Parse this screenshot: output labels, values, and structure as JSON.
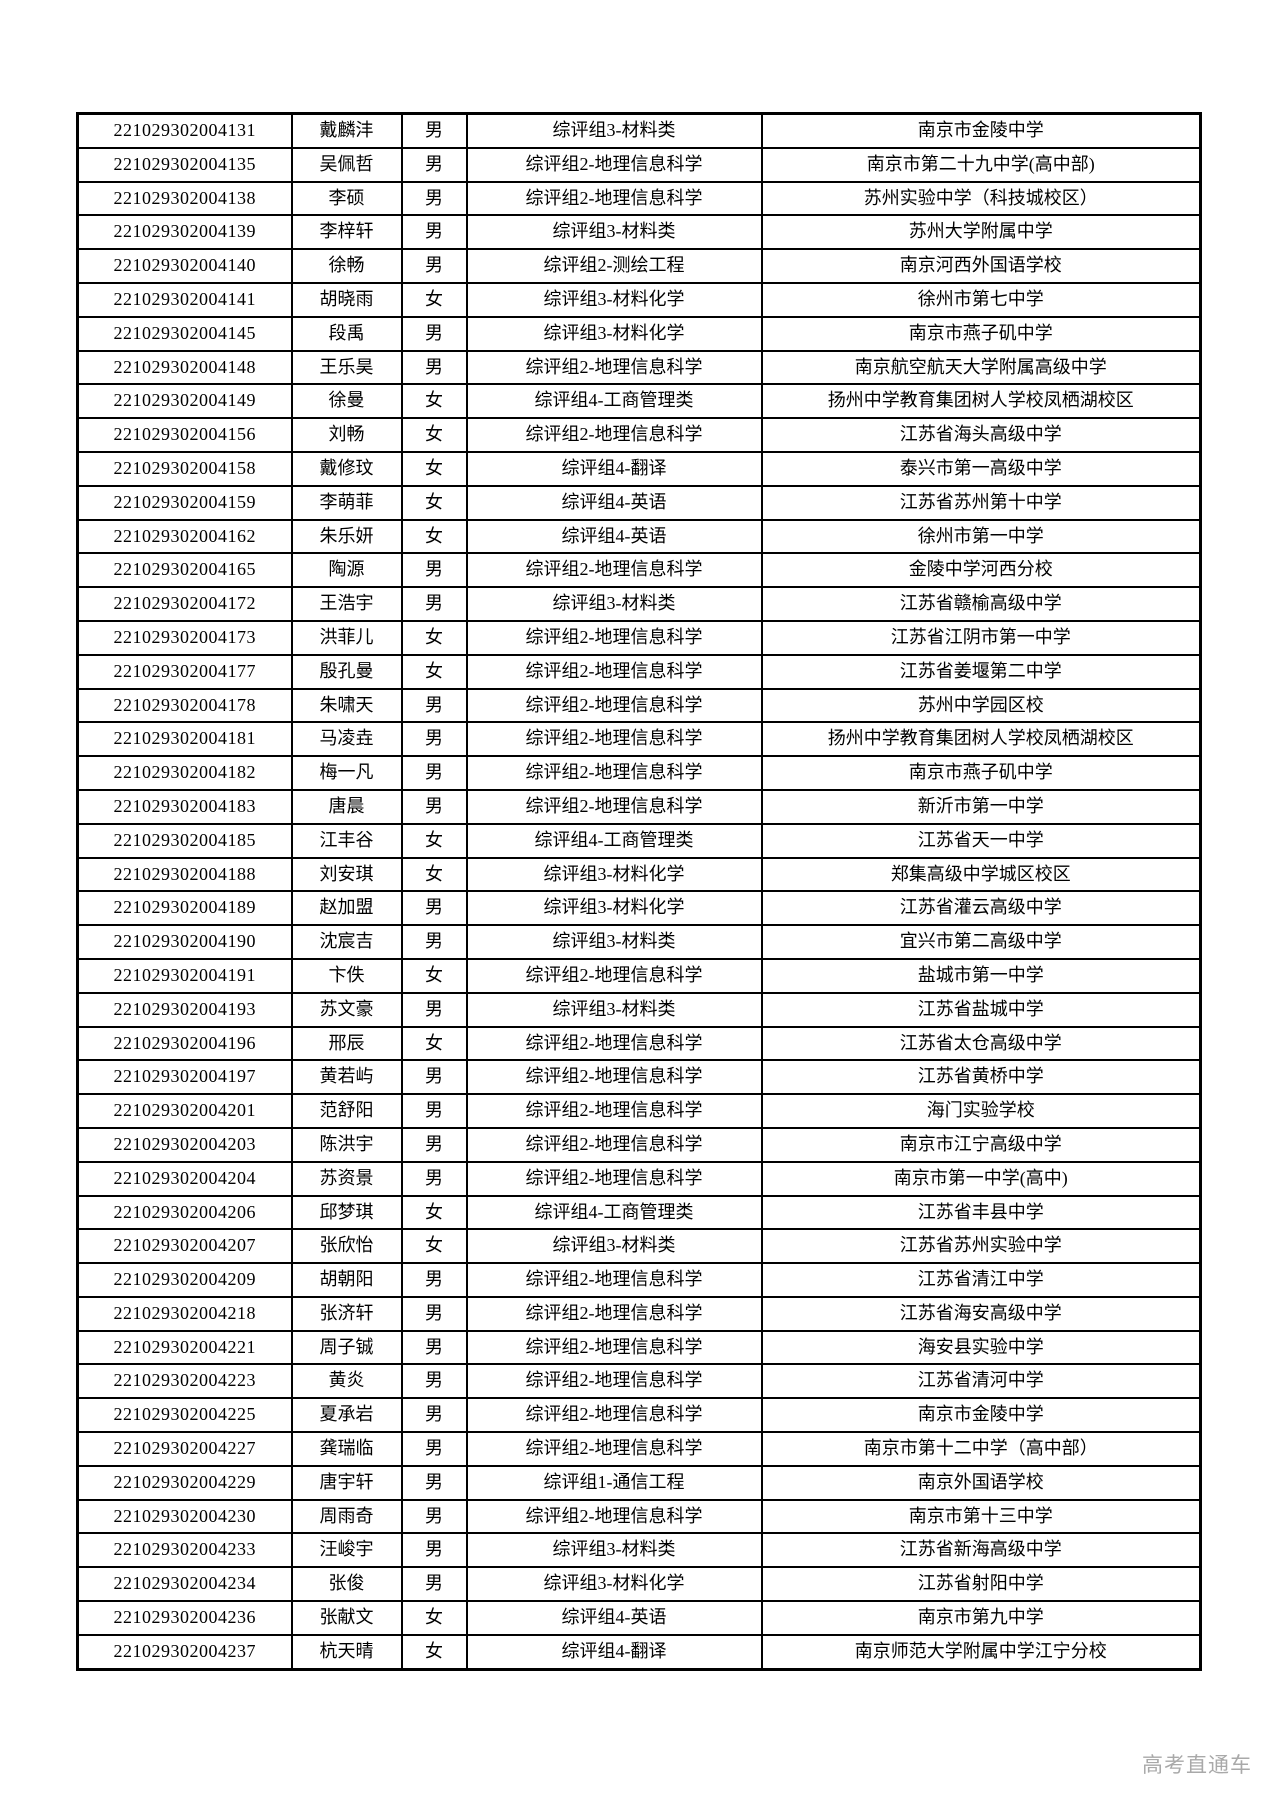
{
  "watermark": "高考直通车",
  "table": {
    "columns": [
      "exam-id",
      "name",
      "gender",
      "group",
      "school"
    ],
    "rows": [
      [
        "221029302004131",
        "戴麟沣",
        "男",
        "综评组3-材料类",
        "南京市金陵中学"
      ],
      [
        "221029302004135",
        "吴佩哲",
        "男",
        "综评组2-地理信息科学",
        "南京市第二十九中学(高中部)"
      ],
      [
        "221029302004138",
        "李硕",
        "男",
        "综评组2-地理信息科学",
        "苏州实验中学（科技城校区）"
      ],
      [
        "221029302004139",
        "李梓轩",
        "男",
        "综评组3-材料类",
        "苏州大学附属中学"
      ],
      [
        "221029302004140",
        "徐畅",
        "男",
        "综评组2-测绘工程",
        "南京河西外国语学校"
      ],
      [
        "221029302004141",
        "胡晓雨",
        "女",
        "综评组3-材料化学",
        "徐州市第七中学"
      ],
      [
        "221029302004145",
        "段禹",
        "男",
        "综评组3-材料化学",
        "南京市燕子矶中学"
      ],
      [
        "221029302004148",
        "王乐昊",
        "男",
        "综评组2-地理信息科学",
        "南京航空航天大学附属高级中学"
      ],
      [
        "221029302004149",
        "徐曼",
        "女",
        "综评组4-工商管理类",
        "扬州中学教育集团树人学校凤栖湖校区"
      ],
      [
        "221029302004156",
        "刘畅",
        "女",
        "综评组2-地理信息科学",
        "江苏省海头高级中学"
      ],
      [
        "221029302004158",
        "戴修玟",
        "女",
        "综评组4-翻译",
        "泰兴市第一高级中学"
      ],
      [
        "221029302004159",
        "李萌菲",
        "女",
        "综评组4-英语",
        "江苏省苏州第十中学"
      ],
      [
        "221029302004162",
        "朱乐妍",
        "女",
        "综评组4-英语",
        "徐州市第一中学"
      ],
      [
        "221029302004165",
        "陶源",
        "男",
        "综评组2-地理信息科学",
        "金陵中学河西分校"
      ],
      [
        "221029302004172",
        "王浩宇",
        "男",
        "综评组3-材料类",
        "江苏省赣榆高级中学"
      ],
      [
        "221029302004173",
        "洪菲儿",
        "女",
        "综评组2-地理信息科学",
        "江苏省江阴市第一中学"
      ],
      [
        "221029302004177",
        "殷孔曼",
        "女",
        "综评组2-地理信息科学",
        "江苏省姜堰第二中学"
      ],
      [
        "221029302004178",
        "朱啸天",
        "男",
        "综评组2-地理信息科学",
        "苏州中学园区校"
      ],
      [
        "221029302004181",
        "马凌垚",
        "男",
        "综评组2-地理信息科学",
        "扬州中学教育集团树人学校凤栖湖校区"
      ],
      [
        "221029302004182",
        "梅一凡",
        "男",
        "综评组2-地理信息科学",
        "南京市燕子矶中学"
      ],
      [
        "221029302004183",
        "唐晨",
        "男",
        "综评组2-地理信息科学",
        "新沂市第一中学"
      ],
      [
        "221029302004185",
        "江丰谷",
        "女",
        "综评组4-工商管理类",
        "江苏省天一中学"
      ],
      [
        "221029302004188",
        "刘安琪",
        "女",
        "综评组3-材料化学",
        "郑集高级中学城区校区"
      ],
      [
        "221029302004189",
        "赵加盟",
        "男",
        "综评组3-材料化学",
        "江苏省灌云高级中学"
      ],
      [
        "221029302004190",
        "沈宸吉",
        "男",
        "综评组3-材料类",
        "宜兴市第二高级中学"
      ],
      [
        "221029302004191",
        "卞佚",
        "女",
        "综评组2-地理信息科学",
        "盐城市第一中学"
      ],
      [
        "221029302004193",
        "苏文豪",
        "男",
        "综评组3-材料类",
        "江苏省盐城中学"
      ],
      [
        "221029302004196",
        "邢辰",
        "女",
        "综评组2-地理信息科学",
        "江苏省太仓高级中学"
      ],
      [
        "221029302004197",
        "黄若屿",
        "男",
        "综评组2-地理信息科学",
        "江苏省黄桥中学"
      ],
      [
        "221029302004201",
        "范舒阳",
        "男",
        "综评组2-地理信息科学",
        "海门实验学校"
      ],
      [
        "221029302004203",
        "陈洪宇",
        "男",
        "综评组2-地理信息科学",
        "南京市江宁高级中学"
      ],
      [
        "221029302004204",
        "苏资景",
        "男",
        "综评组2-地理信息科学",
        "南京市第一中学(高中)"
      ],
      [
        "221029302004206",
        "邱梦琪",
        "女",
        "综评组4-工商管理类",
        "江苏省丰县中学"
      ],
      [
        "221029302004207",
        "张欣怡",
        "女",
        "综评组3-材料类",
        "江苏省苏州实验中学"
      ],
      [
        "221029302004209",
        "胡朝阳",
        "男",
        "综评组2-地理信息科学",
        "江苏省清江中学"
      ],
      [
        "221029302004218",
        "张济轩",
        "男",
        "综评组2-地理信息科学",
        "江苏省海安高级中学"
      ],
      [
        "221029302004221",
        "周子铖",
        "男",
        "综评组2-地理信息科学",
        "海安县实验中学"
      ],
      [
        "221029302004223",
        "黄炎",
        "男",
        "综评组2-地理信息科学",
        "江苏省清河中学"
      ],
      [
        "221029302004225",
        "夏承岩",
        "男",
        "综评组2-地理信息科学",
        "南京市金陵中学"
      ],
      [
        "221029302004227",
        "龚瑞临",
        "男",
        "综评组2-地理信息科学",
        "南京市第十二中学（高中部）"
      ],
      [
        "221029302004229",
        "唐宇轩",
        "男",
        "综评组1-通信工程",
        "南京外国语学校"
      ],
      [
        "221029302004230",
        "周雨奇",
        "男",
        "综评组2-地理信息科学",
        "南京市第十三中学"
      ],
      [
        "221029302004233",
        "汪峻宇",
        "男",
        "综评组3-材料类",
        "江苏省新海高级中学"
      ],
      [
        "221029302004234",
        "张俊",
        "男",
        "综评组3-材料化学",
        "江苏省射阳中学"
      ],
      [
        "221029302004236",
        "张献文",
        "女",
        "综评组4-英语",
        "南京市第九中学"
      ],
      [
        "221029302004237",
        "杭天晴",
        "女",
        "综评组4-翻译",
        "南京师范大学附属中学江宁分校"
      ]
    ]
  }
}
